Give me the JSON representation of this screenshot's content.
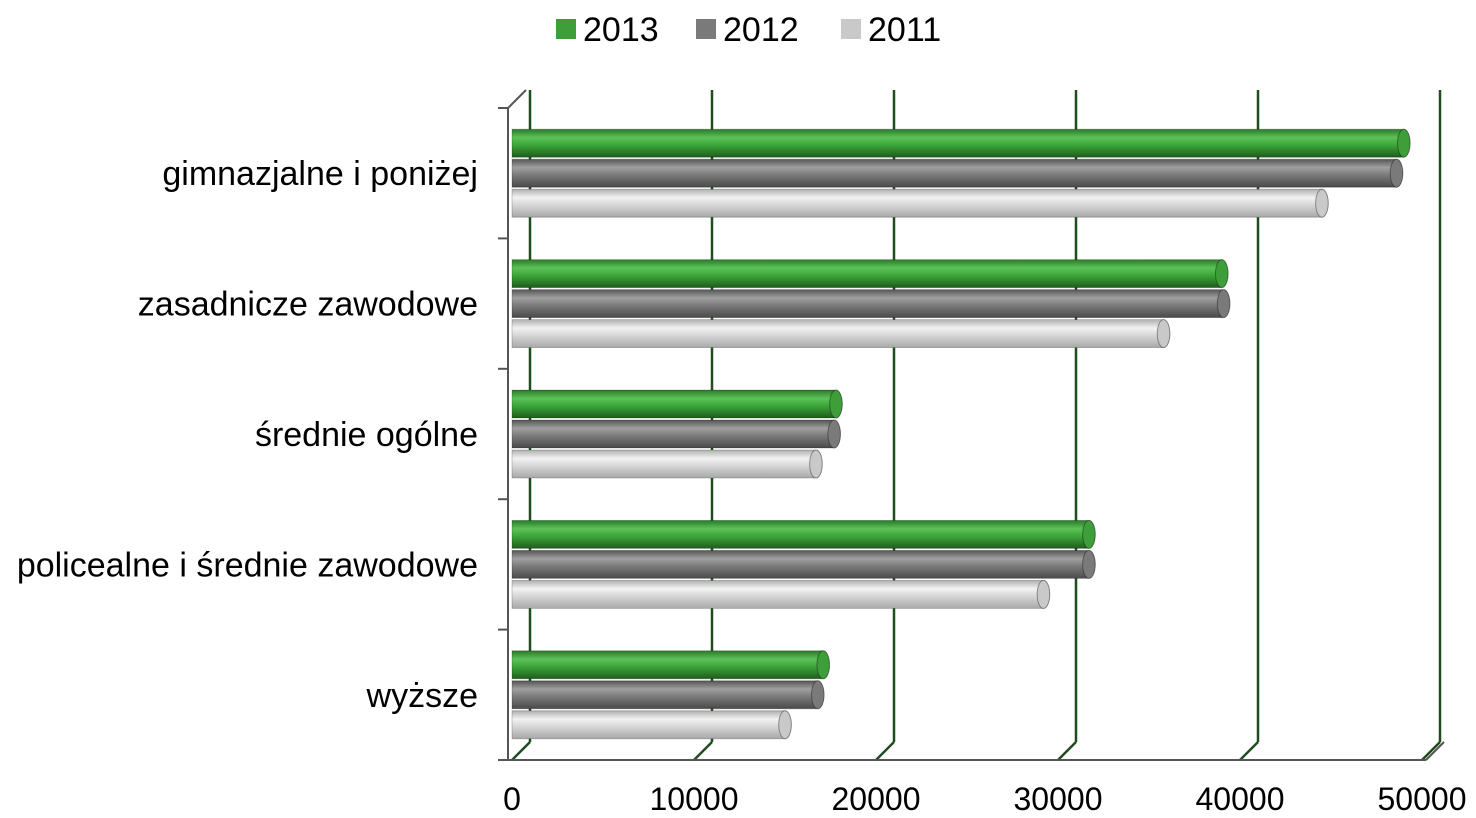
{
  "chart_data": {
    "type": "bar",
    "orientation": "horizontal",
    "title": "",
    "xlabel": "",
    "ylabel": "",
    "categories": [
      "gimnazjalne i poniżej",
      "zasadnicze zawodowe",
      "średnie ogólne",
      "policealne i średnie zawodowe",
      "wyższe"
    ],
    "series": [
      {
        "name": "2013",
        "color": "#3d9e3a",
        "values": [
          49000,
          39000,
          17800,
          31700,
          17100
        ]
      },
      {
        "name": "2012",
        "color": "#7a7a7a",
        "values": [
          48600,
          39100,
          17700,
          31700,
          16800
        ]
      },
      {
        "name": "2011",
        "color": "#c9c9c9",
        "values": [
          44500,
          35800,
          16700,
          29200,
          15000
        ]
      }
    ],
    "xlim": [
      0,
      50000
    ],
    "xticks": [
      "0",
      "10000",
      "20000",
      "30000",
      "40000",
      "50000"
    ],
    "grid": true,
    "legend_position": "top"
  }
}
